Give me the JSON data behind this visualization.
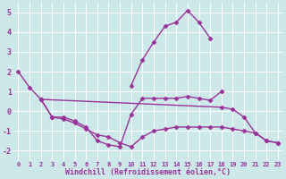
{
  "bg_color": "#cce8e8",
  "grid_color": "#aacccc",
  "line_color": "#993399",
  "xlim": [
    -0.5,
    23.5
  ],
  "ylim": [
    -2.5,
    5.5
  ],
  "yticks": [
    -2,
    -1,
    0,
    1,
    2,
    3,
    4,
    5
  ],
  "xticks": [
    0,
    1,
    2,
    3,
    4,
    5,
    6,
    7,
    8,
    9,
    10,
    11,
    12,
    13,
    14,
    15,
    16,
    17,
    18,
    19,
    20,
    21,
    22,
    23
  ],
  "xlabel": "Windchill (Refroidissement éolien,°C)",
  "line1_x": [
    0,
    1,
    2,
    18,
    19,
    20,
    21,
    22,
    23
  ],
  "line1_y": [
    2.0,
    1.2,
    0.6,
    0.2,
    0.1,
    -0.3,
    -1.1,
    -1.5,
    -1.6
  ],
  "line2_x": [
    2,
    3,
    4,
    5,
    6,
    7,
    8,
    9,
    10,
    11,
    12,
    13,
    14,
    15,
    16,
    17,
    18
  ],
  "line2_y": [
    0.6,
    -0.3,
    -0.3,
    -0.5,
    -0.8,
    -1.5,
    -1.7,
    -1.8,
    -0.15,
    0.65,
    0.65,
    0.65,
    0.65,
    0.75,
    0.65,
    0.55,
    1.0
  ],
  "line3_x": [
    2,
    3,
    4,
    5,
    6,
    7,
    8,
    9,
    10,
    11,
    12,
    13,
    14,
    15,
    16,
    17,
    18,
    19,
    20,
    21,
    22,
    23
  ],
  "line3_y": [
    0.6,
    -0.3,
    -0.4,
    -0.6,
    -0.9,
    -1.2,
    -1.3,
    -1.6,
    -1.8,
    -1.3,
    -1.0,
    -0.9,
    -0.8,
    -0.8,
    -0.8,
    -0.8,
    -0.8,
    -0.9,
    -1.0,
    -1.1,
    -1.5,
    -1.6
  ],
  "line4_x": [
    10,
    11,
    12,
    13,
    14,
    15,
    16,
    17
  ],
  "line4_y": [
    1.3,
    2.6,
    3.5,
    4.3,
    4.5,
    5.1,
    4.5,
    3.7
  ],
  "marker": "D",
  "marker_size": 2.5,
  "line_width": 1.0
}
